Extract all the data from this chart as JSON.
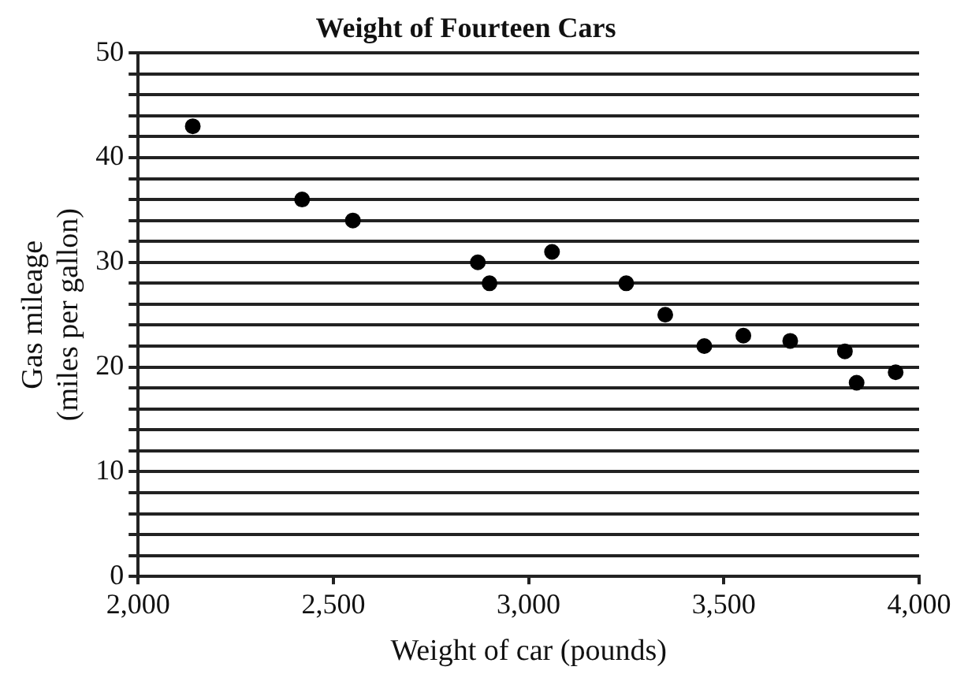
{
  "chart_data": {
    "type": "scatter",
    "title": "Weight of Fourteen Cars",
    "xlabel": "Weight of car (pounds)",
    "ylabel": "Gas mileage\n(miles per gallon)",
    "x": [
      2140,
      2420,
      2550,
      2870,
      2900,
      3060,
      3250,
      3350,
      3450,
      3550,
      3670,
      3810,
      3840,
      3940
    ],
    "values": [
      43,
      36,
      34,
      30,
      28,
      31,
      28,
      25,
      22,
      23,
      22.5,
      21.5,
      18.5,
      19.5
    ],
    "color": "#000000",
    "marker": "circle",
    "grid": "y",
    "xlim": [
      2000,
      4000
    ],
    "xticks": [
      {
        "value": 2000,
        "label": "2,000"
      },
      {
        "value": 2500,
        "label": "2,500"
      },
      {
        "value": 3000,
        "label": "3,000"
      },
      {
        "value": 3500,
        "label": "3,500"
      },
      {
        "value": 4000,
        "label": "4,000"
      }
    ],
    "ylim": [
      0,
      50
    ],
    "yticks": [
      0,
      {
        "value": 2,
        "label": null
      },
      {
        "value": 4,
        "label": null
      },
      {
        "value": 6,
        "label": null
      },
      {
        "value": 8,
        "label": null
      },
      10,
      {
        "value": 12,
        "label": null
      },
      {
        "value": 14,
        "label": null
      },
      {
        "value": 16,
        "label": null
      },
      {
        "value": 18,
        "label": null
      },
      20,
      {
        "value": 22,
        "label": null
      },
      {
        "value": 24,
        "label": null
      },
      {
        "value": 26,
        "label": null
      },
      {
        "value": 28,
        "label": null
      },
      30,
      {
        "value": 32,
        "label": null
      },
      {
        "value": 34,
        "label": null
      },
      {
        "value": 36,
        "label": null
      },
      {
        "value": 38,
        "label": null
      },
      40,
      {
        "value": 42,
        "label": null
      },
      {
        "value": 44,
        "label": null
      },
      {
        "value": 46,
        "label": null
      },
      {
        "value": 48,
        "label": null
      },
      50
    ]
  }
}
